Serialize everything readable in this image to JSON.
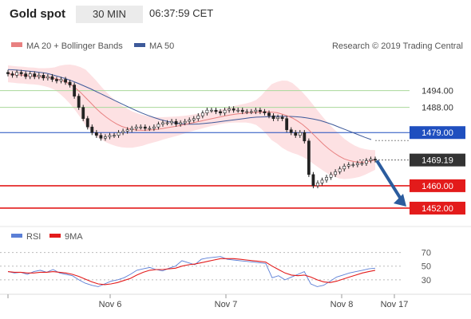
{
  "header": {
    "title": "Gold spot",
    "timeframe": "30 MIN",
    "time": "06:37:59 CET"
  },
  "legend": {
    "bollinger": "MA 20 + Bollinger Bands",
    "ma50": "MA 50",
    "credit": "Research © 2019 Trading Central"
  },
  "colors": {
    "band_fill": "#fde1e3",
    "ma20": "#e88080",
    "ma50": "#3e5a9a",
    "green_level": "#a8d89a",
    "blue_level": "#1f4fbf",
    "red_level": "#e31b1b",
    "candle": "#222222",
    "arrow": "#2b5c9e",
    "price_box": "#333333",
    "rsi": "#5b7fd6",
    "rsi_ma": "#e31b1b"
  },
  "chart_data": [
    {
      "type": "candlestick",
      "ylim": [
        1448,
        1505
      ],
      "x_tick_labels": [
        "Nov 6",
        "Nov 7",
        "Nov 8",
        "Nov 17"
      ],
      "levels": [
        {
          "label": "1494.00",
          "value": 1494.0,
          "kind": "resistance-green"
        },
        {
          "label": "1488.00",
          "value": 1488.0,
          "kind": "resistance-green"
        },
        {
          "label": "1479.00",
          "value": 1479.0,
          "kind": "pivot-blue"
        },
        {
          "label": "1469.19",
          "value": 1469.19,
          "kind": "last-price"
        },
        {
          "label": "1460.00",
          "value": 1460.0,
          "kind": "support-red"
        },
        {
          "label": "1452.00",
          "value": 1452.0,
          "kind": "support-red"
        }
      ],
      "close_series": [
        1500,
        1499.5,
        1500.5,
        1500,
        1499,
        1500,
        1499,
        1499.5,
        1498.5,
        1499,
        1498,
        1497.5,
        1498,
        1497,
        1496,
        1492,
        1488,
        1484,
        1481,
        1479,
        1478,
        1477,
        1477.5,
        1478,
        1478,
        1479,
        1479.5,
        1480,
        1480.5,
        1481,
        1481,
        1480.5,
        1480.5,
        1481,
        1482,
        1482.5,
        1482.5,
        1483,
        1482,
        1482.5,
        1483,
        1483.5,
        1484,
        1485,
        1486,
        1487,
        1487,
        1486.5,
        1486,
        1487,
        1487.5,
        1487,
        1487,
        1486.5,
        1486.5,
        1486.5,
        1487,
        1486.5,
        1486,
        1485,
        1484,
        1484.5,
        1484,
        1480,
        1479,
        1478,
        1479,
        1476,
        1464,
        1460,
        1461,
        1462,
        1463,
        1464,
        1465,
        1466,
        1467,
        1467.5,
        1467.5,
        1468,
        1468,
        1469,
        1469.5,
        1469.19
      ],
      "ma20": [
        1500,
        1499.8,
        1499.6,
        1499.5,
        1499.3,
        1499.2,
        1499,
        1498.8,
        1498.6,
        1498.3,
        1497.9,
        1497.2,
        1496.3,
        1495,
        1493.4,
        1491.5,
        1489.6,
        1487.7,
        1486,
        1484.5,
        1483.2,
        1482.1,
        1481.2,
        1480.6,
        1480.1,
        1479.9,
        1479.8,
        1479.9,
        1480,
        1480.2,
        1480.5,
        1480.8,
        1481.1,
        1481.4,
        1481.8,
        1482.2,
        1482.6,
        1483,
        1483.4,
        1483.8,
        1484.2,
        1484.6,
        1485,
        1485.3,
        1485.6,
        1485.8,
        1486,
        1486.1,
        1486.2,
        1486.3,
        1486.4,
        1486.3,
        1486.1,
        1485.6,
        1485,
        1484.2,
        1483.1,
        1481.8,
        1480.2,
        1478.4,
        1476.6,
        1474.8,
        1473.2,
        1471.8,
        1470.6,
        1469.6,
        1469,
        1468.6,
        1468.4,
        1468.5,
        1468.8,
        1469.2
      ],
      "ma50": [
        1501.5,
        1501.4,
        1501.2,
        1501,
        1500.8,
        1500.5,
        1500.2,
        1499.6,
        1499,
        1498.3,
        1497.5,
        1496.6,
        1495.6,
        1494.6,
        1493.5,
        1492.4,
        1491.3,
        1490.2,
        1489.1,
        1488,
        1487,
        1486,
        1485.1,
        1484.3,
        1483.6,
        1483,
        1482.5,
        1482.2,
        1482,
        1482,
        1482.1,
        1482.3,
        1482.5,
        1482.8,
        1483.1,
        1483.4,
        1483.7,
        1484,
        1484.3,
        1484.5,
        1484.6,
        1484.7,
        1484.8,
        1484.8,
        1484.8,
        1484.7,
        1484.5,
        1484.2,
        1483.8,
        1483.3,
        1482.6,
        1481.8,
        1480.9,
        1480,
        1479.1,
        1478.2,
        1477.3,
        1476.5
      ]
    },
    {
      "type": "line",
      "title": "RSI",
      "series": [
        {
          "name": "RSI",
          "values": [
            42,
            40,
            41,
            38,
            42,
            44,
            41,
            45,
            40,
            38,
            36,
            30,
            25,
            22,
            20,
            24,
            28,
            30,
            33,
            38,
            44,
            46,
            48,
            45,
            43,
            47,
            50,
            58,
            55,
            52,
            60,
            62,
            63,
            64,
            60,
            59,
            58,
            57,
            56,
            55,
            54,
            33,
            36,
            30,
            34,
            38,
            42,
            24,
            20,
            22,
            28,
            34,
            37,
            40,
            42,
            44,
            46,
            47
          ]
        },
        {
          "name": "9MA",
          "values": [
            42,
            41,
            41,
            40,
            40,
            41,
            41,
            42,
            41,
            40,
            38,
            35,
            31,
            27,
            24,
            23,
            24,
            26,
            29,
            32,
            37,
            41,
            44,
            45,
            45,
            46,
            47,
            50,
            52,
            53,
            55,
            57,
            59,
            61,
            61,
            61,
            60,
            59,
            58,
            57,
            56,
            50,
            45,
            40,
            37,
            36,
            37,
            34,
            30,
            27,
            26,
            28,
            31,
            34,
            37,
            40,
            42,
            44
          ]
        }
      ],
      "ylim": [
        10,
        80
      ],
      "y_tick_labels": [
        "70",
        "50",
        "30"
      ],
      "y_ticks": [
        70,
        50,
        30
      ]
    }
  ],
  "rsi_legend": {
    "rsi": "RSI",
    "ma": "9MA"
  }
}
